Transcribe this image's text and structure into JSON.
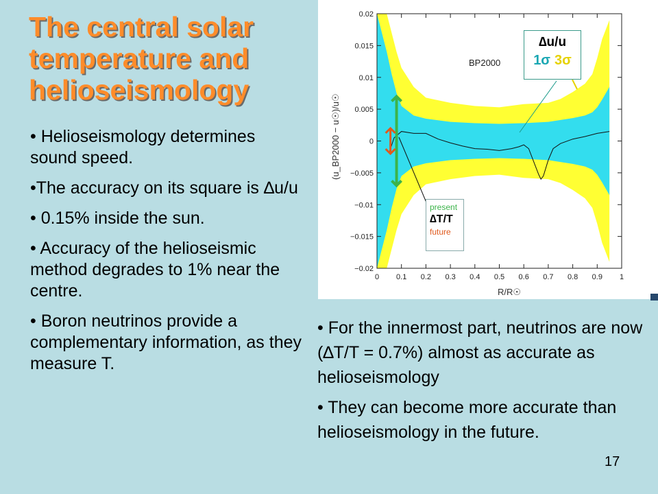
{
  "title": [
    "The central solar",
    "temperature and",
    "helioseismology"
  ],
  "left_bullets": [
    "• Helioseismology determines sound speed.",
    "•The accuracy on its square is ∆u/u",
    "• 0.15%  inside the sun.",
    "• Accuracy of the helioseismic method degrades to 1% near the centre.",
    "• Boron neutrinos provide a complementary information, as they measure T."
  ],
  "right_bullets": [
    "• For the innermost part, neutrinos are now  (∆T/T =  0.7%) almost as accurate as helioseismology",
    "• They can  become more accurate than helioseismology in the future."
  ],
  "slide_number": "17",
  "colors": {
    "background": "#b9dde3",
    "title": "#ff8c2a",
    "band_3sigma": "#ffff33",
    "band_1sigma": "#33ddee",
    "present_arrow": "#3cb34a",
    "future_arrow": "#e05a1e"
  },
  "legend": {
    "title": "∆u/u",
    "one_sigma": "1σ",
    "three_sigma": "3σ"
  },
  "annotation": {
    "present": "present",
    "measure": "∆T/T",
    "future": "future"
  },
  "chart_data": {
    "type": "line",
    "model_label": "BP2000",
    "xlabel": "R/R☉",
    "ylabel": "(u_BP2000 − u☉)/u☉",
    "xlim": [
      0,
      1
    ],
    "ylim": [
      -0.02,
      0.02
    ],
    "x_ticks": [
      "0",
      "0.1",
      "0.2",
      "0.3",
      "0.4",
      "0.5",
      "0.6",
      "0.7",
      "0.8",
      "0.9",
      "1"
    ],
    "y_ticks": [
      "0.02",
      "0.015",
      "0.01",
      "0.005",
      "0",
      "−0.005",
      "−0.01",
      "−0.015",
      "−0.02"
    ],
    "series": [
      {
        "x": [
          0.05,
          0.07,
          0.1,
          0.15,
          0.2,
          0.25,
          0.3,
          0.35,
          0.4,
          0.45,
          0.5,
          0.55,
          0.58,
          0.6,
          0.62,
          0.64,
          0.66,
          0.67,
          0.68,
          0.7,
          0.72,
          0.75,
          0.8,
          0.85,
          0.9,
          0.95
        ],
        "values": [
          -0.0018,
          0.0005,
          0.0015,
          0.0012,
          0.0012,
          0.0003,
          -0.0003,
          -0.0008,
          -0.0012,
          -0.0013,
          -0.0015,
          -0.0012,
          -0.0009,
          -0.0006,
          -0.0012,
          -0.0032,
          -0.0052,
          -0.006,
          -0.0055,
          -0.003,
          -0.0012,
          -0.0004,
          0.0003,
          0.0007,
          0.0012,
          0.0015
        ]
      }
    ],
    "band_3sigma": {
      "x": [
        0,
        0.02,
        0.04,
        0.06,
        0.08,
        0.1,
        0.15,
        0.2,
        0.3,
        0.4,
        0.5,
        0.6,
        0.7,
        0.75,
        0.8,
        0.85,
        0.88,
        0.9,
        0.92,
        0.95
      ],
      "half_width": [
        0.02,
        0.02,
        0.02,
        0.017,
        0.014,
        0.0115,
        0.0085,
        0.0068,
        0.006,
        0.0055,
        0.0053,
        0.0058,
        0.006,
        0.0066,
        0.0077,
        0.009,
        0.0105,
        0.013,
        0.016,
        0.019
      ]
    },
    "band_1sigma": {
      "x": [
        0,
        0.02,
        0.04,
        0.06,
        0.08,
        0.1,
        0.15,
        0.2,
        0.3,
        0.4,
        0.5,
        0.6,
        0.7,
        0.75,
        0.8,
        0.85,
        0.88,
        0.9,
        0.92,
        0.95
      ],
      "half_width": [
        0.02,
        0.017,
        0.014,
        0.0105,
        0.0075,
        0.0055,
        0.004,
        0.0035,
        0.003,
        0.0028,
        0.0027,
        0.0028,
        0.003,
        0.0033,
        0.0036,
        0.004,
        0.0045,
        0.0053,
        0.0065,
        0.0085
      ]
    },
    "present_error": 0.007,
    "future_error": 0.002
  }
}
